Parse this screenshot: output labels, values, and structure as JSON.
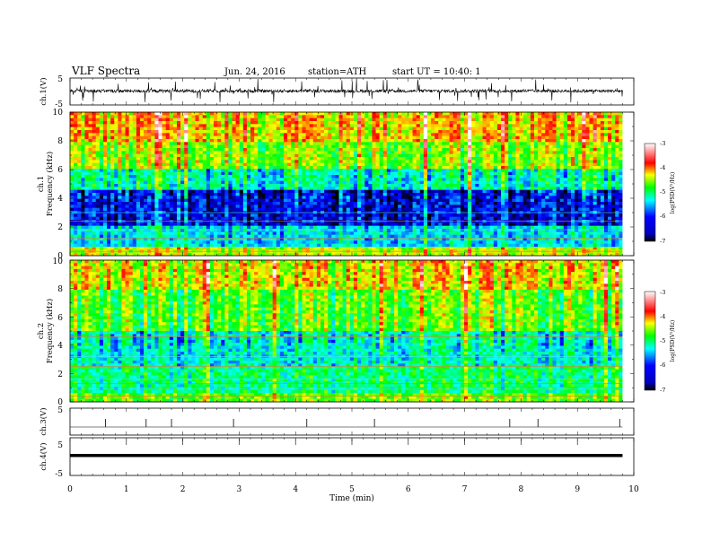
{
  "header": {
    "title": "VLF Spectra",
    "date": "Jun. 24, 2016",
    "station": "station=ATH",
    "start": "start UT =  10:40: 1"
  },
  "chart_data": [
    {
      "id": "ch1_waveform",
      "type": "line",
      "ylabel": "ch.1(V)",
      "yticks": [
        "5",
        "-5"
      ],
      "ylim": [
        -5,
        5
      ],
      "xlim": [
        0,
        10
      ],
      "description_values": {
        "baseline": 0.2,
        "spike_amplitude": 4.5,
        "data_end_min": 9.8
      }
    },
    {
      "id": "ch1_spectrogram",
      "type": "heatmap",
      "ylabel_line1": "ch.1",
      "ylabel_line2": "Frequency  (kHz)",
      "yticks": [
        "0",
        "2",
        "4",
        "6",
        "8",
        "10"
      ],
      "ylim": [
        0,
        10
      ],
      "xlim": [
        0,
        10
      ],
      "zlim": [
        -7,
        -3
      ],
      "colorbar_label": "log(PSD(V²/Hz)",
      "colorbar_ticks": [
        "-3",
        "-4",
        "-5",
        "-6",
        "-7"
      ],
      "colormap": [
        "#000000",
        "#0000ff",
        "#00ffff",
        "#00ff00",
        "#ffff00",
        "#ff0000",
        "#ffffff"
      ]
    },
    {
      "id": "ch2_spectrogram",
      "type": "heatmap",
      "ylabel_line1": "ch.2",
      "ylabel_line2": "Frequency  (kHz)",
      "yticks": [
        "0",
        "2",
        "4",
        "6",
        "8",
        "10"
      ],
      "ylim": [
        0,
        10
      ],
      "xlim": [
        0,
        10
      ],
      "zlim": [
        -7,
        -3
      ],
      "colorbar_label": "log(PSD(V²/Hz)",
      "colorbar_ticks": [
        "-3",
        "-4",
        "-5",
        "-6",
        "-7"
      ]
    },
    {
      "id": "ch3_waveform",
      "type": "line",
      "ylabel": "ch.3(V)",
      "yticks": [
        "5"
      ],
      "ylim": [
        -5,
        5
      ],
      "xlim": [
        0,
        10
      ],
      "spike_times_min": [
        0.63,
        1.35,
        1.8,
        2.9,
        4.2,
        5.4,
        7.8,
        8.3,
        9.75
      ]
    },
    {
      "id": "ch4_waveform",
      "type": "line",
      "ylabel": "ch.4(V)",
      "yticks": [
        "5",
        "-5"
      ],
      "ylim": [
        -5,
        5
      ],
      "xlim": [
        0,
        10
      ],
      "baseline_v": 0.3
    }
  ],
  "x_axis": {
    "label": "Time  (min)",
    "ticks": [
      "0",
      "1",
      "2",
      "3",
      "4",
      "5",
      "6",
      "7",
      "8",
      "9",
      "10"
    ]
  }
}
